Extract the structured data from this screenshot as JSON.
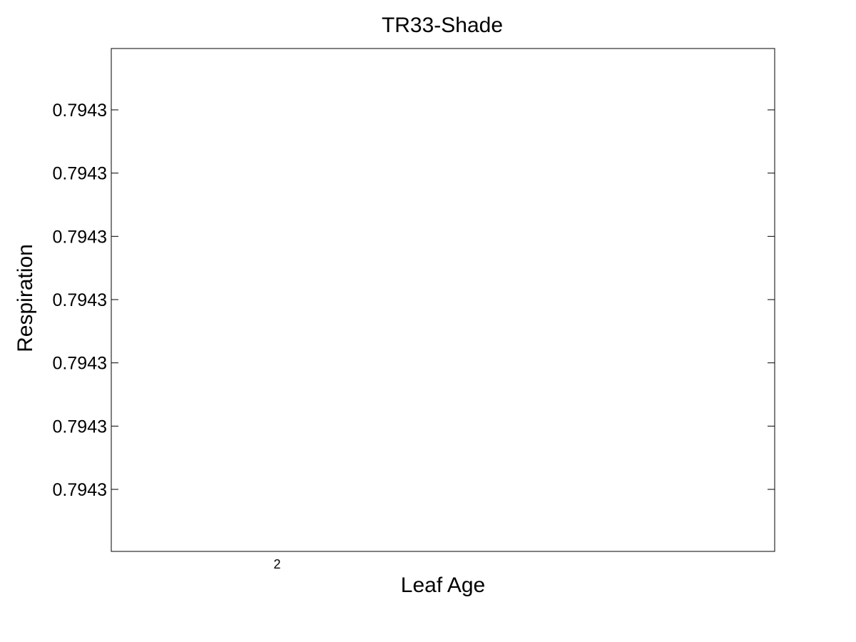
{
  "chart_data": {
    "type": "line",
    "title": "TR33-Shade",
    "xlabel": "Leaf Age",
    "ylabel": "Respiration",
    "x_ticks": [
      2
    ],
    "x_tick_labels": [
      "2"
    ],
    "y_tick_labels": [
      "0.7943",
      "0.7943",
      "0.7943",
      "0.7943",
      "0.7943",
      "0.7943",
      "0.7943"
    ],
    "series": [],
    "grid": false,
    "legend": "none",
    "colors": {
      "axis": "#000000",
      "background": "#ffffff"
    }
  }
}
